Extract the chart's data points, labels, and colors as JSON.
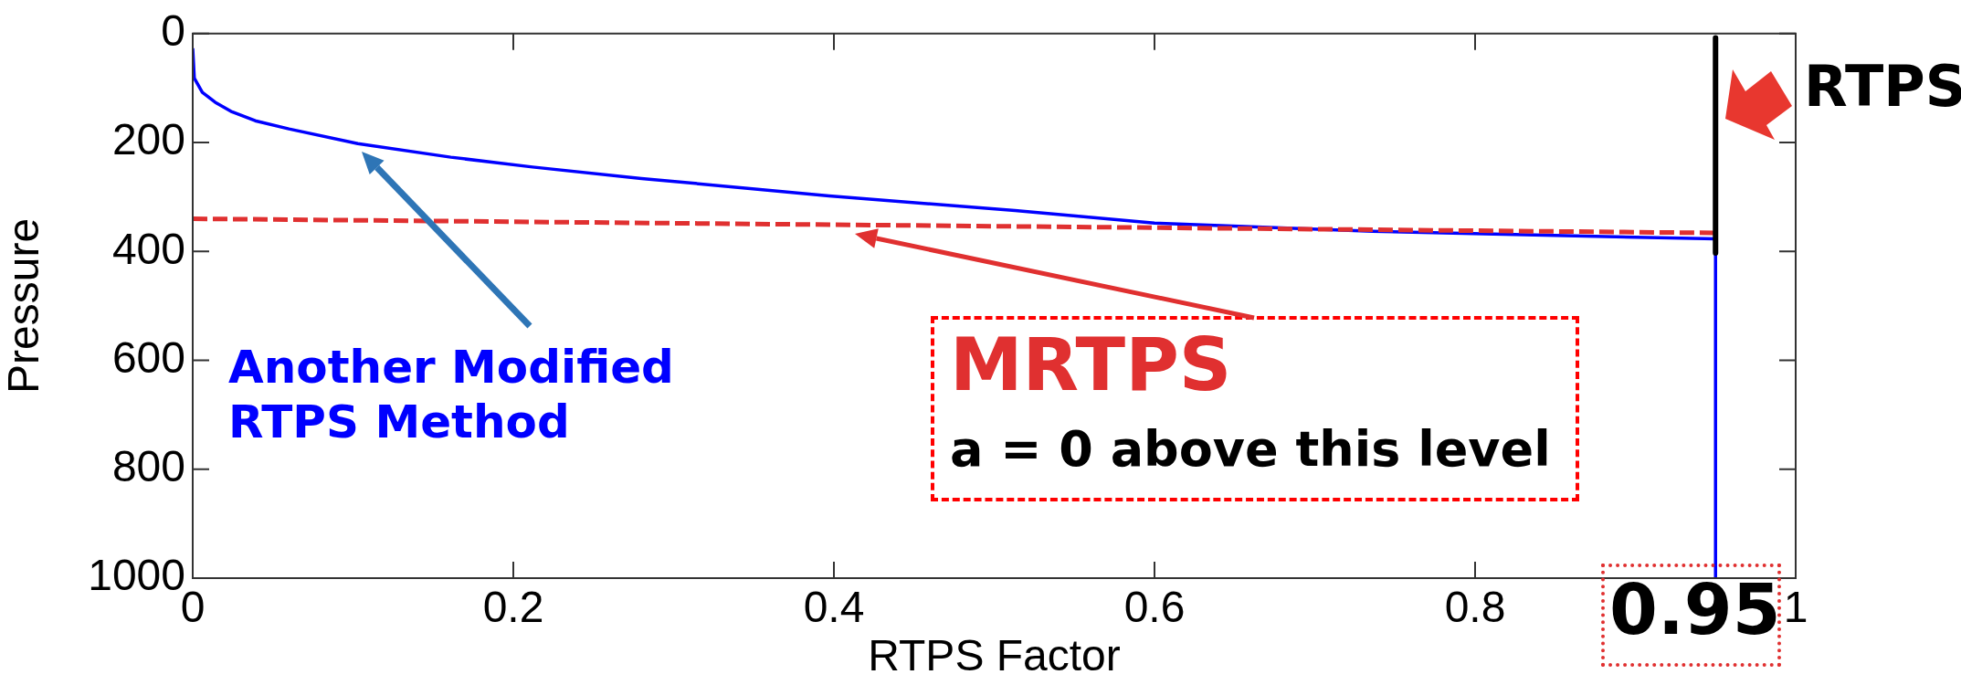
{
  "chart_data": {
    "type": "line",
    "xlabel": "RTPS Factor",
    "ylabel": "Pressure",
    "xlim": [
      0,
      1
    ],
    "xticks": [
      0,
      0.2,
      0.4,
      0.6,
      0.8,
      1
    ],
    "ylim": [
      1000,
      0
    ],
    "yticks": [
      0,
      200,
      400,
      600,
      800,
      1000
    ],
    "grid": false,
    "legend": false,
    "marker": "none",
    "series": [
      {
        "name": "Another Modified RTPS Method",
        "color": "#0000ff",
        "line_style": "solid",
        "x": [
          0,
          0.001,
          0.006,
          0.014,
          0.024,
          0.039,
          0.06,
          0.103,
          0.161,
          0.212,
          0.28,
          0.397,
          0.513,
          0.6,
          0.736,
          0.9,
          0.95,
          0.95
        ],
        "values": [
          27,
          82,
          108,
          126,
          143,
          160,
          175,
          202,
          227,
          245,
          266,
          298,
          325,
          348,
          363,
          374,
          377,
          1000
        ]
      },
      {
        "name": "MRTPS",
        "color": "#e03030",
        "line_style": "dashed",
        "x": [
          0,
          0.95
        ],
        "values": [
          340,
          366
        ]
      },
      {
        "color": "#000000",
        "line_style": "solid",
        "x": [
          0.95,
          0.95
        ],
        "values": [
          8,
          403
        ]
      }
    ],
    "annotations": [
      "a = 0 above this level",
      "0.95",
      "RTPS"
    ]
  }
}
